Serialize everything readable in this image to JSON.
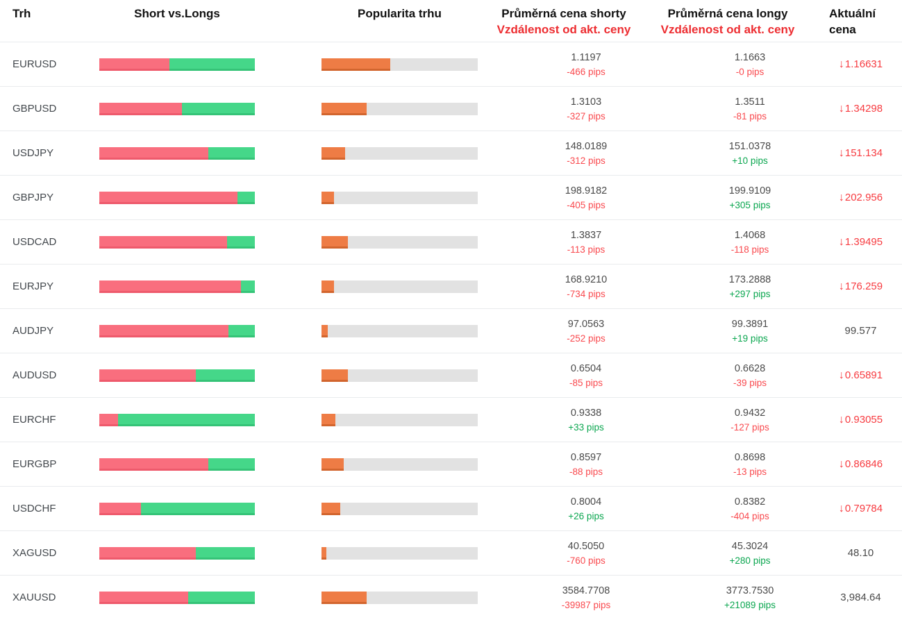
{
  "columns": {
    "market": "Trh",
    "short_vs_longs": "Short vs.Longs",
    "popularity": "Popularita trhu",
    "avg_short_line1": "Průměrná cena shorty",
    "avg_short_line2": "Vzdálenost od akt. ceny",
    "avg_long_line1": "Průměrná cena longy",
    "avg_long_line2": "Vzdálenost od akt. ceny",
    "current": "Aktuální cena"
  },
  "icons": {
    "trend_down": "↓"
  },
  "colors": {
    "short_bar": "#f96e7e",
    "short_bar_edge": "#ee5a6c",
    "long_bar": "#45d789",
    "long_bar_edge": "#35c377",
    "popularity_bar": "#ee7c45",
    "popularity_bar_edge": "#d2652e",
    "track": "#e2e2e2",
    "negative_text": "#f9494e",
    "positive_text": "#0aa64f",
    "price_down_text": "#f73b40",
    "header_accent": "#ed2d31",
    "neutral_text": "#4a4a4a"
  },
  "rows": [
    {
      "market": "EURUSD",
      "shorts_pct": 45,
      "popularity_pct": 44,
      "short_price": "1.1197",
      "short_dist": "-466 pips",
      "long_price": "1.1663",
      "long_dist": "-0 pips",
      "current_price": "1.16631",
      "trend": "down"
    },
    {
      "market": "GBPUSD",
      "shorts_pct": 53,
      "popularity_pct": 29,
      "short_price": "1.3103",
      "short_dist": "-327 pips",
      "long_price": "1.3511",
      "long_dist": "-81 pips",
      "current_price": "1.34298",
      "trend": "down"
    },
    {
      "market": "USDJPY",
      "shorts_pct": 70,
      "popularity_pct": 15,
      "short_price": "148.0189",
      "short_dist": "-312 pips",
      "long_price": "151.0378",
      "long_dist": "+10 pips",
      "current_price": "151.134",
      "trend": "down"
    },
    {
      "market": "GBPJPY",
      "shorts_pct": 89,
      "popularity_pct": 8,
      "short_price": "198.9182",
      "short_dist": "-405 pips",
      "long_price": "199.9109",
      "long_dist": "+305 pips",
      "current_price": "202.956",
      "trend": "down"
    },
    {
      "market": "USDCAD",
      "shorts_pct": 82,
      "popularity_pct": 17,
      "short_price": "1.3837",
      "short_dist": "-113 pips",
      "long_price": "1.4068",
      "long_dist": "-118 pips",
      "current_price": "1.39495",
      "trend": "down"
    },
    {
      "market": "EURJPY",
      "shorts_pct": 91,
      "popularity_pct": 8,
      "short_price": "168.9210",
      "short_dist": "-734 pips",
      "long_price": "173.2888",
      "long_dist": "+297 pips",
      "current_price": "176.259",
      "trend": "down"
    },
    {
      "market": "AUDJPY",
      "shorts_pct": 83,
      "popularity_pct": 4,
      "short_price": "97.0563",
      "short_dist": "-252 pips",
      "long_price": "99.3891",
      "long_dist": "+19 pips",
      "current_price": "99.577",
      "trend": "none"
    },
    {
      "market": "AUDUSD",
      "shorts_pct": 62,
      "popularity_pct": 17,
      "short_price": "0.6504",
      "short_dist": "-85 pips",
      "long_price": "0.6628",
      "long_dist": "-39 pips",
      "current_price": "0.65891",
      "trend": "down"
    },
    {
      "market": "EURCHF",
      "shorts_pct": 12,
      "popularity_pct": 9,
      "short_price": "0.9338",
      "short_dist": "+33 pips",
      "long_price": "0.9432",
      "long_dist": "-127 pips",
      "current_price": "0.93055",
      "trend": "down"
    },
    {
      "market": "EURGBP",
      "shorts_pct": 70,
      "popularity_pct": 14,
      "short_price": "0.8597",
      "short_dist": "-88 pips",
      "long_price": "0.8698",
      "long_dist": "-13 pips",
      "current_price": "0.86846",
      "trend": "down"
    },
    {
      "market": "USDCHF",
      "shorts_pct": 27,
      "popularity_pct": 12,
      "short_price": "0.8004",
      "short_dist": "+26 pips",
      "long_price": "0.8382",
      "long_dist": "-404 pips",
      "current_price": "0.79784",
      "trend": "down"
    },
    {
      "market": "XAGUSD",
      "shorts_pct": 62,
      "popularity_pct": 3,
      "short_price": "40.5050",
      "short_dist": "-760 pips",
      "long_price": "45.3024",
      "long_dist": "+280 pips",
      "current_price": "48.10",
      "trend": "none"
    },
    {
      "market": "XAUUSD",
      "shorts_pct": 57,
      "popularity_pct": 29,
      "short_price": "3584.7708",
      "short_dist": "-39987 pips",
      "long_price": "3773.7530",
      "long_dist": "+21089 pips",
      "current_price": "3,984.64",
      "trend": "none"
    }
  ]
}
